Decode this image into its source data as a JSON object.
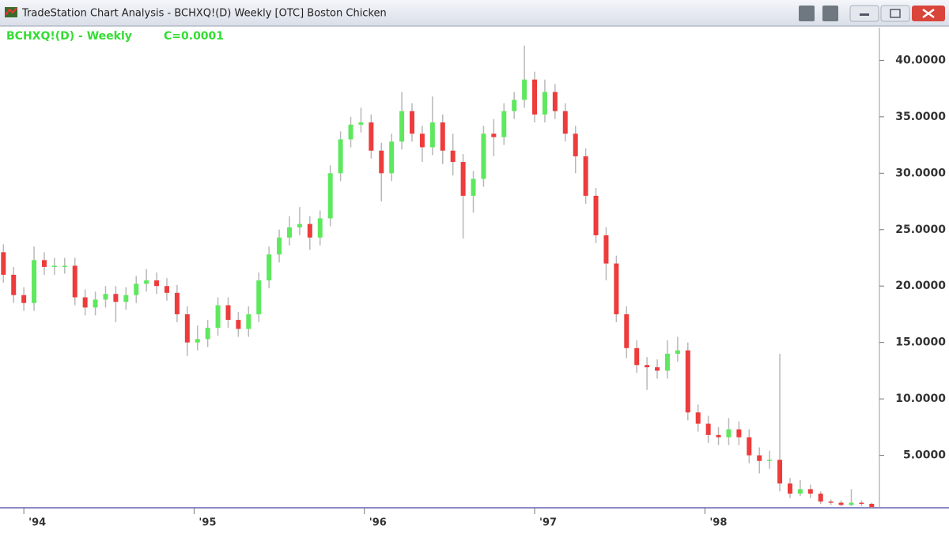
{
  "window": {
    "title": "TradeStation Chart Analysis - BCHXQ!(D) Weekly [OTC] Boston Chicken"
  },
  "chart_data": {
    "type": "candlestick",
    "title": "BCHXQ!(D) - Weekly",
    "annotation": "C=0.0001",
    "up_color": "#5ee85e",
    "down_color": "#ee3b3b",
    "wick_color": "#b8b8b8",
    "text_color": "#33dd33",
    "x": [
      1993.88,
      1993.94,
      1994.0,
      1994.06,
      1994.12,
      1994.18,
      1994.24,
      1994.3,
      1994.36,
      1994.42,
      1994.48,
      1994.54,
      1994.6,
      1994.66,
      1994.72,
      1994.78,
      1994.84,
      1994.9,
      1994.96,
      1995.02,
      1995.08,
      1995.14,
      1995.2,
      1995.26,
      1995.32,
      1995.38,
      1995.44,
      1995.5,
      1995.56,
      1995.62,
      1995.68,
      1995.74,
      1995.8,
      1995.86,
      1995.92,
      1995.98,
      1996.04,
      1996.1,
      1996.16,
      1996.22,
      1996.28,
      1996.34,
      1996.4,
      1996.46,
      1996.52,
      1996.58,
      1996.64,
      1996.7,
      1996.76,
      1996.82,
      1996.88,
      1996.94,
      1997.0,
      1997.06,
      1997.12,
      1997.18,
      1997.24,
      1997.3,
      1997.36,
      1997.42,
      1997.48,
      1997.54,
      1997.6,
      1997.66,
      1997.72,
      1997.78,
      1997.84,
      1997.9,
      1997.96,
      1998.02,
      1998.08,
      1998.14,
      1998.2,
      1998.26,
      1998.32,
      1998.38,
      1998.44,
      1998.5,
      1998.56,
      1998.62,
      1998.68,
      1998.74,
      1998.8,
      1998.86,
      1998.92,
      1998.98
    ],
    "open": [
      23,
      21,
      19.2,
      18.5,
      22.3,
      21.7,
      21.8,
      21.8,
      19,
      18.1,
      18.8,
      19.3,
      18.6,
      19.2,
      20.2,
      20.5,
      20,
      19.4,
      17.5,
      15,
      15.3,
      16.3,
      18.3,
      17,
      16.2,
      17.5,
      20.5,
      22.8,
      24.3,
      25.2,
      25.5,
      24.3,
      26,
      30,
      33,
      34.3,
      34.5,
      32,
      30,
      32.8,
      35.5,
      33.5,
      32.3,
      34.5,
      32,
      31,
      28,
      29.5,
      33.5,
      33.2,
      35.5,
      36.5,
      38.3,
      35.2,
      37.2,
      35.5,
      33.5,
      31.5,
      28,
      24.5,
      22,
      17.5,
      14.5,
      13,
      12.8,
      12.5,
      14,
      14.3,
      8.8,
      7.8,
      6.8,
      6.6,
      7.3,
      6.6,
      5,
      4.5,
      4.6,
      2.5,
      1.6,
      2,
      1.6,
      0.9,
      0.8,
      0.6,
      0.8,
      0.7
    ],
    "high": [
      23.7,
      21.7,
      19.9,
      23.5,
      23,
      22.5,
      22.5,
      22.5,
      19.7,
      19.5,
      20,
      20,
      19.9,
      20.9,
      21.5,
      21.2,
      20.7,
      20.1,
      18.2,
      16.5,
      17,
      19,
      19,
      17.7,
      18.2,
      21.2,
      23.5,
      25,
      26.2,
      27,
      26.2,
      26.7,
      30.7,
      33.7,
      35,
      35.8,
      35.2,
      32.7,
      33.5,
      37.2,
      36.2,
      34.2,
      36.8,
      35.2,
      33.5,
      31.7,
      30.2,
      34.2,
      34.8,
      36.2,
      37.2,
      41.3,
      39,
      38.3,
      37.9,
      36.2,
      34.2,
      32.2,
      28.7,
      25.2,
      22.7,
      18.2,
      15.2,
      13.7,
      13.5,
      15.2,
      15.5,
      15,
      9.5,
      8.5,
      7.5,
      8.3,
      8,
      7.3,
      5.7,
      5.4,
      14,
      3,
      2.8,
      2.4,
      1.8,
      1.1,
      1,
      2,
      1,
      0.8
    ],
    "low": [
      20.3,
      18.5,
      17.8,
      17.8,
      21,
      21,
      21.1,
      18.3,
      17.4,
      17.4,
      18.1,
      16.8,
      17.9,
      18.5,
      19.5,
      19.3,
      18.7,
      16.8,
      13.8,
      14.3,
      14.6,
      15.6,
      16.3,
      15.5,
      15.5,
      16.8,
      19.8,
      22.1,
      23.6,
      24.5,
      23.2,
      23.6,
      25.3,
      29.3,
      32.3,
      33.6,
      31.3,
      27.5,
      29.3,
      32.1,
      32.8,
      31,
      31.6,
      30.8,
      29.8,
      24.2,
      26.5,
      28.8,
      31.5,
      32.5,
      34.8,
      35.8,
      34.5,
      34.5,
      34.8,
      32.8,
      30,
      27.3,
      23.8,
      20.5,
      16.8,
      13.6,
      12.3,
      10.8,
      11.8,
      11.8,
      13.3,
      8.1,
      7.1,
      6.1,
      5.9,
      5.9,
      5.9,
      4.3,
      3.4,
      3.8,
      1.8,
      1.2,
      1.4,
      1.2,
      0.7,
      0.6,
      0.5,
      0.5,
      0.5,
      0.35
    ],
    "close": [
      21,
      19.2,
      18.5,
      22.3,
      21.7,
      21.8,
      21.8,
      19,
      18.1,
      18.8,
      19.3,
      18.6,
      19.2,
      20.2,
      20.5,
      20,
      19.4,
      17.5,
      15,
      15.3,
      16.3,
      18.3,
      17,
      16.2,
      17.5,
      20.5,
      22.8,
      24.3,
      25.2,
      25.5,
      24.3,
      26,
      30,
      33,
      34.3,
      34.5,
      32,
      30,
      32.8,
      35.5,
      33.5,
      32.3,
      34.5,
      32,
      31,
      28,
      29.5,
      33.5,
      33.2,
      35.5,
      36.5,
      38.3,
      35.2,
      37.2,
      35.5,
      33.5,
      31.5,
      28,
      24.5,
      22,
      17.5,
      14.5,
      13,
      12.8,
      12.5,
      14,
      14.3,
      8.8,
      7.8,
      6.8,
      6.6,
      7.3,
      6.6,
      5,
      4.5,
      4.6,
      2.5,
      1.6,
      2,
      1.6,
      0.9,
      0.8,
      0.6,
      0.8,
      0.7,
      0.4
    ],
    "xlim": [
      1993.86,
      1999.025
    ],
    "xticks": [
      {
        "value": 1994,
        "label": "'94"
      },
      {
        "value": 1995,
        "label": "'95"
      },
      {
        "value": 1996,
        "label": "'96"
      },
      {
        "value": 1997,
        "label": "'97"
      },
      {
        "value": 1998,
        "label": "'98"
      }
    ],
    "ylim": [
      0.35,
      42.9
    ],
    "yticks": [
      {
        "value": 5,
        "label": "5.0000"
      },
      {
        "value": 10,
        "label": "10.0000"
      },
      {
        "value": 15,
        "label": "15.0000"
      },
      {
        "value": 20,
        "label": "20.0000"
      },
      {
        "value": 25,
        "label": "25.0000"
      },
      {
        "value": 30,
        "label": "30.0000"
      },
      {
        "value": 35,
        "label": "35.0000"
      },
      {
        "value": 40,
        "label": "40.0000"
      }
    ]
  }
}
